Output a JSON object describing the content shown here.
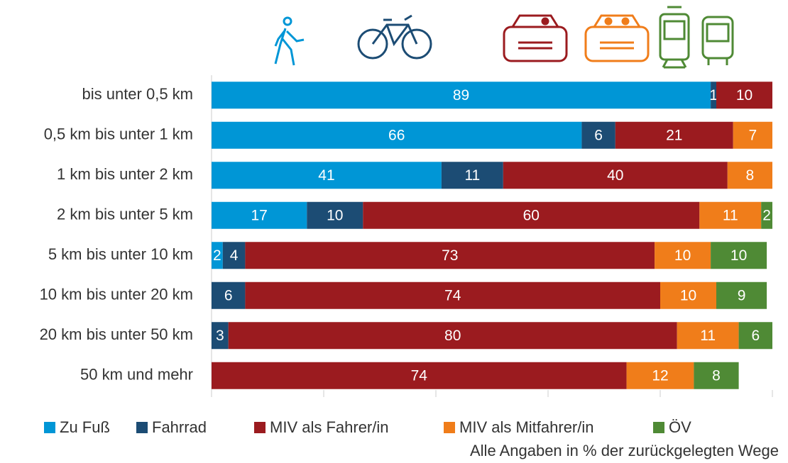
{
  "chart_data": {
    "type": "stacked-bar-horizontal",
    "categories": [
      "bis unter 0,5 km",
      "0,5 km bis unter 1 km",
      "1 km bis unter 2 km",
      "2 km bis unter 5 km",
      "5 km bis unter 10 km",
      "10 km bis unter 20 km",
      "20 km bis unter 50 km",
      "50 km und mehr"
    ],
    "series": [
      {
        "name": "Zu Fuß",
        "color": "#0096d6",
        "values": [
          89,
          66,
          41,
          17,
          2,
          null,
          null,
          null
        ]
      },
      {
        "name": "Fahrrad",
        "color": "#1c4c74",
        "values": [
          1,
          6,
          11,
          10,
          4,
          6,
          3,
          null
        ]
      },
      {
        "name": "MIV als Fahrer/in",
        "color": "#9b1b1f",
        "values": [
          10,
          21,
          40,
          60,
          73,
          74,
          80,
          74
        ]
      },
      {
        "name": "MIV als Mitfahrer/in",
        "color": "#f07d1a",
        "values": [
          null,
          7,
          8,
          11,
          10,
          10,
          11,
          12
        ]
      },
      {
        "name": "ÖV",
        "color": "#4f8a35",
        "values": [
          null,
          null,
          null,
          2,
          10,
          9,
          6,
          8
        ]
      }
    ],
    "xlim": [
      0,
      100
    ],
    "xticks": [
      0,
      20,
      40,
      60,
      80,
      100
    ],
    "note": "Alle Angaben in % der zurückgelegten Wege"
  }
}
